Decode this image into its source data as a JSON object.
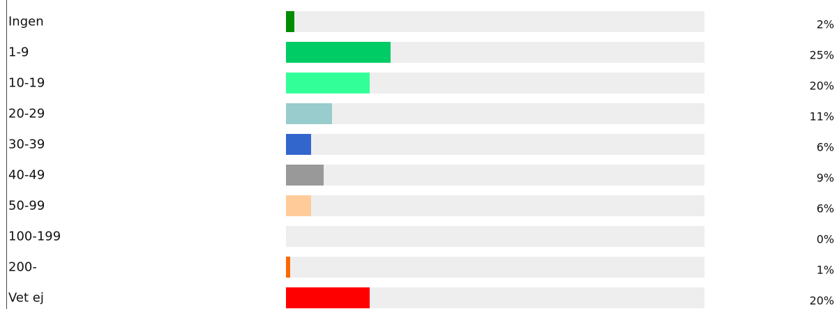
{
  "chart_data": {
    "type": "bar",
    "orientation": "horizontal",
    "categories": [
      "Ingen",
      "1-9",
      "10-19",
      "20-29",
      "30-39",
      "40-49",
      "50-99",
      "100-199",
      "200-",
      "Vet ej"
    ],
    "values": [
      2,
      25,
      20,
      11,
      6,
      9,
      6,
      0,
      1,
      20
    ],
    "value_labels": [
      "2%",
      "25%",
      "20%",
      "11%",
      "6%",
      "9%",
      "6%",
      "0%",
      "1%",
      "20%"
    ],
    "colors": [
      "#008c00",
      "#00cc66",
      "#33ff99",
      "#99cccc",
      "#3366cc",
      "#999999",
      "#ffcc99",
      "#eeeeee",
      "#ff6600",
      "#ff0000"
    ],
    "track_color": "#eeeeee",
    "xlim": [
      0,
      100
    ],
    "grid": false,
    "legend": false
  }
}
